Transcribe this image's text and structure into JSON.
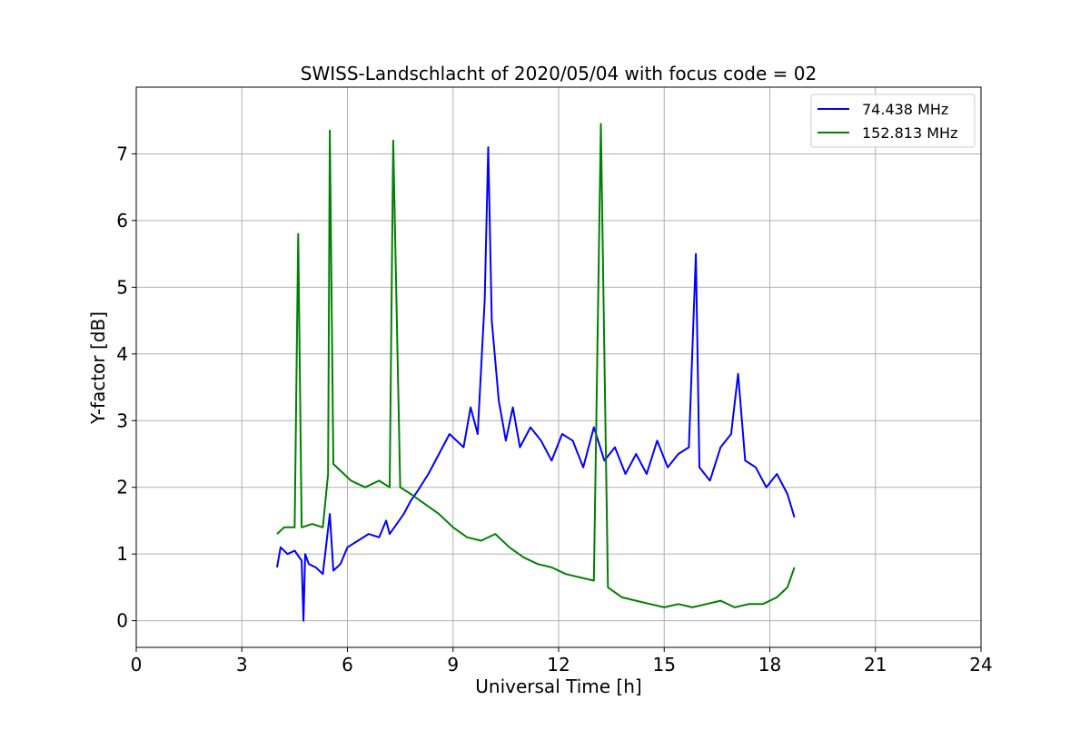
{
  "chart_data": {
    "type": "line",
    "title": "SWISS-Landschlacht of 2020/05/04 with focus code = 02",
    "xlabel": "Universal Time [h]",
    "ylabel": "Y-factor [dB]",
    "xlim": [
      0,
      24
    ],
    "ylim": [
      -0.4,
      8.0
    ],
    "xticks": [
      0,
      3,
      6,
      9,
      12,
      15,
      18,
      21,
      24
    ],
    "yticks": [
      0,
      1,
      2,
      3,
      4,
      5,
      6,
      7
    ],
    "grid": true,
    "legend_position": "top-right",
    "series": [
      {
        "name": "  74.438 MHz",
        "color": "#0000ff",
        "x": [
          4.0,
          4.1,
          4.3,
          4.5,
          4.7,
          4.75,
          4.8,
          4.9,
          5.1,
          5.3,
          5.5,
          5.6,
          5.8,
          6.0,
          6.3,
          6.6,
          6.9,
          7.1,
          7.2,
          7.4,
          7.6,
          7.8,
          8.0,
          8.3,
          8.6,
          8.9,
          9.1,
          9.3,
          9.5,
          9.7,
          9.9,
          10.0,
          10.1,
          10.3,
          10.5,
          10.7,
          10.9,
          11.2,
          11.5,
          11.8,
          12.1,
          12.4,
          12.7,
          13.0,
          13.3,
          13.6,
          13.9,
          14.2,
          14.5,
          14.8,
          15.1,
          15.4,
          15.7,
          15.9,
          16.0,
          16.3,
          16.6,
          16.9,
          17.1,
          17.3,
          17.6,
          17.9,
          18.2,
          18.5,
          18.7
        ],
        "y": [
          0.8,
          1.1,
          1.0,
          1.05,
          0.9,
          0.0,
          1.0,
          0.85,
          0.8,
          0.7,
          1.6,
          0.75,
          0.85,
          1.1,
          1.2,
          1.3,
          1.25,
          1.5,
          1.3,
          1.45,
          1.6,
          1.8,
          1.95,
          2.2,
          2.5,
          2.8,
          2.7,
          2.6,
          3.2,
          2.8,
          4.8,
          7.1,
          4.5,
          3.3,
          2.7,
          3.2,
          2.6,
          2.9,
          2.7,
          2.4,
          2.8,
          2.7,
          2.3,
          2.9,
          2.4,
          2.6,
          2.2,
          2.5,
          2.2,
          2.7,
          2.3,
          2.5,
          2.6,
          5.5,
          2.3,
          2.1,
          2.6,
          2.8,
          3.7,
          2.4,
          2.3,
          2.0,
          2.2,
          1.9,
          1.55
        ]
      },
      {
        "name": "152.813 MHz",
        "color": "#008000",
        "x": [
          4.0,
          4.2,
          4.5,
          4.6,
          4.7,
          5.0,
          5.3,
          5.45,
          5.5,
          5.6,
          5.9,
          6.1,
          6.5,
          6.9,
          7.2,
          7.3,
          7.5,
          7.8,
          8.2,
          8.6,
          9.0,
          9.4,
          9.8,
          10.2,
          10.6,
          11.0,
          11.4,
          11.8,
          12.2,
          12.6,
          13.0,
          13.2,
          13.4,
          13.8,
          14.2,
          14.6,
          15.0,
          15.4,
          15.8,
          16.2,
          16.6,
          17.0,
          17.4,
          17.8,
          18.2,
          18.5,
          18.7
        ],
        "y": [
          1.3,
          1.4,
          1.4,
          5.8,
          1.4,
          1.45,
          1.4,
          2.2,
          7.35,
          2.35,
          2.2,
          2.1,
          2.0,
          2.1,
          2.0,
          7.2,
          2.0,
          1.9,
          1.75,
          1.6,
          1.4,
          1.25,
          1.2,
          1.3,
          1.1,
          0.95,
          0.85,
          0.8,
          0.7,
          0.65,
          0.6,
          7.45,
          0.5,
          0.35,
          0.3,
          0.25,
          0.2,
          0.25,
          0.2,
          0.25,
          0.3,
          0.2,
          0.25,
          0.25,
          0.35,
          0.5,
          0.8
        ]
      }
    ],
    "annotations": []
  }
}
